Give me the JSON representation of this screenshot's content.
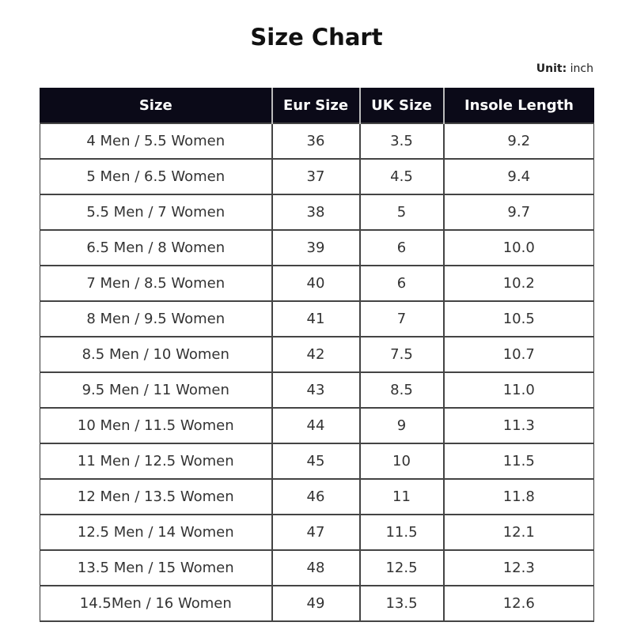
{
  "title": "Size Chart",
  "unit": {
    "label": "Unit:",
    "value": "inch"
  },
  "colors": {
    "header_bg": "#0b0a18",
    "header_text": "#ffffff",
    "border": "#444444"
  },
  "table": {
    "headers": [
      "Size",
      "Eur Size",
      "UK Size",
      "Insole Length"
    ],
    "rows": [
      [
        "4 Men / 5.5 Women",
        "36",
        "3.5",
        "9.2"
      ],
      [
        "5 Men / 6.5 Women",
        "37",
        "4.5",
        "9.4"
      ],
      [
        "5.5 Men / 7 Women",
        "38",
        "5",
        "9.7"
      ],
      [
        "6.5 Men / 8 Women",
        "39",
        "6",
        "10.0"
      ],
      [
        "7 Men / 8.5 Women",
        "40",
        "6",
        "10.2"
      ],
      [
        "8 Men / 9.5 Women",
        "41",
        "7",
        "10.5"
      ],
      [
        "8.5 Men / 10 Women",
        "42",
        "7.5",
        "10.7"
      ],
      [
        "9.5 Men / 11 Women",
        "43",
        "8.5",
        "11.0"
      ],
      [
        "10 Men / 11.5 Women",
        "44",
        "9",
        "11.3"
      ],
      [
        "11 Men / 12.5 Women",
        "45",
        "10",
        "11.5"
      ],
      [
        "12 Men / 13.5 Women",
        "46",
        "11",
        "11.8"
      ],
      [
        "12.5 Men / 14 Women",
        "47",
        "11.5",
        "12.1"
      ],
      [
        "13.5 Men / 15 Women",
        "48",
        "12.5",
        "12.3"
      ],
      [
        "14.5Men / 16 Women",
        "49",
        "13.5",
        "12.6"
      ]
    ]
  }
}
